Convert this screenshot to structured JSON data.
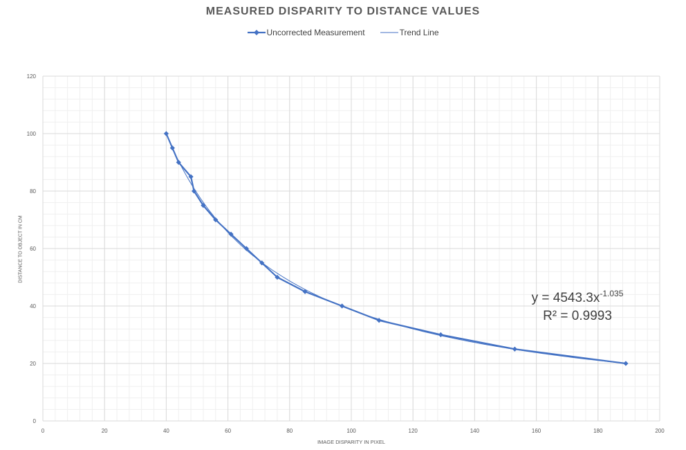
{
  "chart_data": {
    "type": "scatter",
    "title": "MEASURED DISPARITY TO DISTANCE VALUES",
    "xlabel": "IMAGE DISPARITY IN PIXEL",
    "ylabel": "DISTANCE TO OBJECT IN CM",
    "xlim": [
      0,
      200
    ],
    "ylim": [
      0,
      120
    ],
    "x_ticks": [
      0,
      20,
      40,
      60,
      80,
      100,
      120,
      140,
      160,
      180,
      200
    ],
    "y_ticks": [
      0,
      20,
      40,
      60,
      80,
      100,
      120
    ],
    "grid": true,
    "legend_position": "top",
    "series": [
      {
        "name": "Uncorrected Measurement",
        "color": "#4472c4",
        "marker": "diamond",
        "x": [
          40,
          42,
          44,
          48,
          49,
          52,
          56,
          61,
          66,
          71,
          76,
          85,
          97,
          109,
          129,
          153,
          189
        ],
        "y": [
          100,
          95,
          90,
          85,
          80,
          75,
          70,
          65,
          60,
          55,
          50,
          45,
          40,
          35,
          30,
          25,
          20
        ]
      },
      {
        "name": "Trend Line",
        "color": "#4472c4",
        "type": "power",
        "coefficient": 4543.3,
        "exponent": -1.035,
        "x_range": [
          40,
          189
        ]
      }
    ],
    "annotations": {
      "equation_prefix": "y = 4543.3x",
      "equation_exponent": "-1.035",
      "r_squared": "R² = 0.9993"
    }
  }
}
